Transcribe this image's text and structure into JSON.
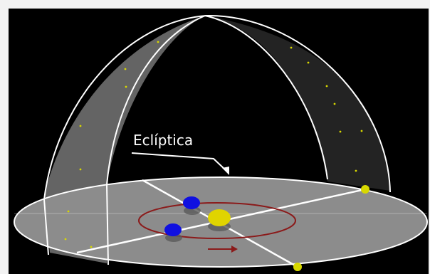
{
  "diagram": {
    "label": "Eclíptica"
  },
  "colors": {
    "background": "#000000",
    "frame": "#f2f2f2",
    "dome_shade": "#6f6f6f",
    "disc": "#8c8c8c",
    "lines": "#ffffff",
    "orbit": "#8b1a1a",
    "sun": "#e0d400",
    "earth": "#1010e0",
    "stars": "#d8d800"
  }
}
